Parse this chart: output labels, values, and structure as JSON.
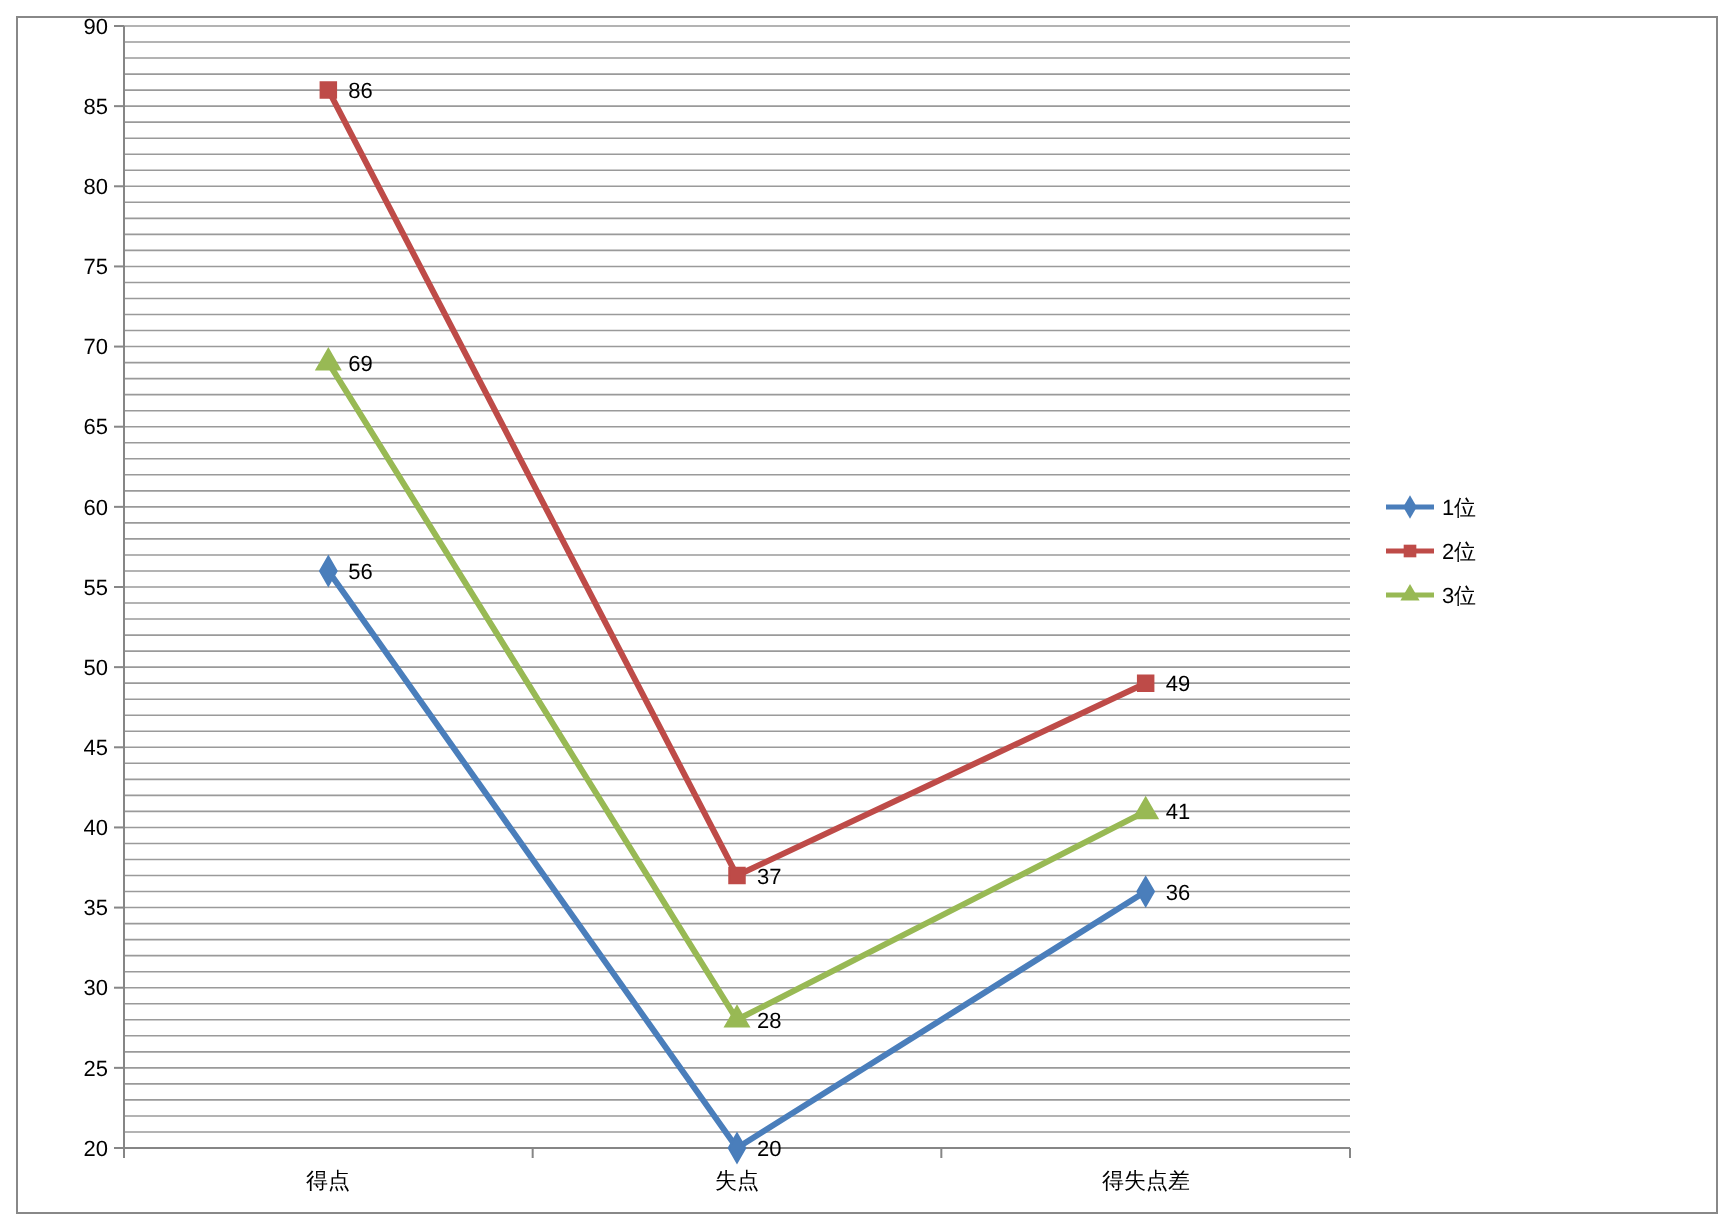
{
  "chart_data": {
    "type": "line",
    "categories": [
      "得点",
      "失点",
      "得失点差"
    ],
    "series": [
      {
        "name": "1位",
        "color": "#4a7ebb",
        "marker": "diamond",
        "values": [
          56,
          20,
          36
        ]
      },
      {
        "name": "2位",
        "color": "#be4b48",
        "marker": "square",
        "values": [
          86,
          37,
          49
        ]
      },
      {
        "name": "3位",
        "color": "#98b954",
        "marker": "triangle",
        "values": [
          69,
          28,
          41
        ]
      }
    ],
    "ylim": [
      20,
      90
    ],
    "yticks": [
      20,
      {
        "value": 21,
        "label": null
      },
      {
        "value": 22,
        "label": null
      },
      {
        "value": 23,
        "label": null
      },
      {
        "value": 24,
        "label": null
      },
      25,
      {
        "value": 26,
        "label": null
      },
      {
        "value": 27,
        "label": null
      },
      {
        "value": 28,
        "label": null
      },
      {
        "value": 29,
        "label": null
      },
      30,
      {
        "value": 31,
        "label": null
      },
      {
        "value": 32,
        "label": null
      },
      {
        "value": 33,
        "label": null
      },
      {
        "value": 34,
        "label": null
      },
      35,
      {
        "value": 36,
        "label": null
      },
      {
        "value": 37,
        "label": null
      },
      {
        "value": 38,
        "label": null
      },
      {
        "value": 39,
        "label": null
      },
      40,
      {
        "value": 41,
        "label": null
      },
      {
        "value": 42,
        "label": null
      },
      {
        "value": 43,
        "label": null
      },
      {
        "value": 44,
        "label": null
      },
      45,
      {
        "value": 46,
        "label": null
      },
      {
        "value": 47,
        "label": null
      },
      {
        "value": 48,
        "label": null
      },
      {
        "value": 49,
        "label": null
      },
      50,
      {
        "value": 51,
        "label": null
      },
      {
        "value": 52,
        "label": null
      },
      {
        "value": 53,
        "label": null
      },
      {
        "value": 54,
        "label": null
      },
      55,
      {
        "value": 56,
        "label": null
      },
      {
        "value": 57,
        "label": null
      },
      {
        "value": 58,
        "label": null
      },
      {
        "value": 59,
        "label": null
      },
      60,
      {
        "value": 61,
        "label": null
      },
      {
        "value": 62,
        "label": null
      },
      {
        "value": 63,
        "label": null
      },
      {
        "value": 64,
        "label": null
      },
      65,
      {
        "value": 66,
        "label": null
      },
      {
        "value": 67,
        "label": null
      },
      {
        "value": 68,
        "label": null
      },
      {
        "value": 69,
        "label": null
      },
      70,
      {
        "value": 71,
        "label": null
      },
      {
        "value": 72,
        "label": null
      },
      {
        "value": 73,
        "label": null
      },
      {
        "value": 74,
        "label": null
      },
      75,
      {
        "value": 76,
        "label": null
      },
      {
        "value": 77,
        "label": null
      },
      {
        "value": 78,
        "label": null
      },
      {
        "value": 79,
        "label": null
      },
      80,
      {
        "value": 81,
        "label": null
      },
      {
        "value": 82,
        "label": null
      },
      {
        "value": 83,
        "label": null
      },
      {
        "value": 84,
        "label": null
      },
      85,
      {
        "value": 86,
        "label": null
      },
      {
        "value": 87,
        "label": null
      },
      {
        "value": 88,
        "label": null
      },
      {
        "value": 89,
        "label": null
      },
      90
    ],
    "grid": "y",
    "legend": "right",
    "data_labels": true,
    "line_style": "solid"
  }
}
